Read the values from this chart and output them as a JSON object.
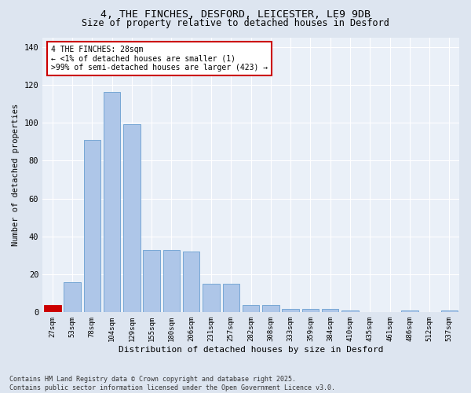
{
  "title1": "4, THE FINCHES, DESFORD, LEICESTER, LE9 9DB",
  "title2": "Size of property relative to detached houses in Desford",
  "xlabel": "Distribution of detached houses by size in Desford",
  "ylabel": "Number of detached properties",
  "categories": [
    "27sqm",
    "53sqm",
    "78sqm",
    "104sqm",
    "129sqm",
    "155sqm",
    "180sqm",
    "206sqm",
    "231sqm",
    "257sqm",
    "282sqm",
    "308sqm",
    "333sqm",
    "359sqm",
    "384sqm",
    "410sqm",
    "435sqm",
    "461sqm",
    "486sqm",
    "512sqm",
    "537sqm"
  ],
  "values": [
    4,
    16,
    91,
    116,
    99,
    33,
    33,
    32,
    15,
    15,
    4,
    4,
    2,
    2,
    2,
    1,
    0,
    0,
    1,
    0,
    1
  ],
  "bar_color": "#aec6e8",
  "bar_edge_color": "#6a9fd0",
  "highlight_index": 0,
  "annotation_title": "4 THE FINCHES: 28sqm",
  "annotation_line1": "← <1% of detached houses are smaller (1)",
  "annotation_line2": ">99% of semi-detached houses are larger (423) →",
  "annotation_box_color": "#ffffff",
  "annotation_box_edge": "#cc0000",
  "highlight_bar_color": "#cc0000",
  "ylim": [
    0,
    145
  ],
  "yticks": [
    0,
    20,
    40,
    60,
    80,
    100,
    120,
    140
  ],
  "footnote1": "Contains HM Land Registry data © Crown copyright and database right 2025.",
  "footnote2": "Contains public sector information licensed under the Open Government Licence v3.0.",
  "bg_color": "#dde5f0",
  "plot_bg_color": "#eaf0f8"
}
